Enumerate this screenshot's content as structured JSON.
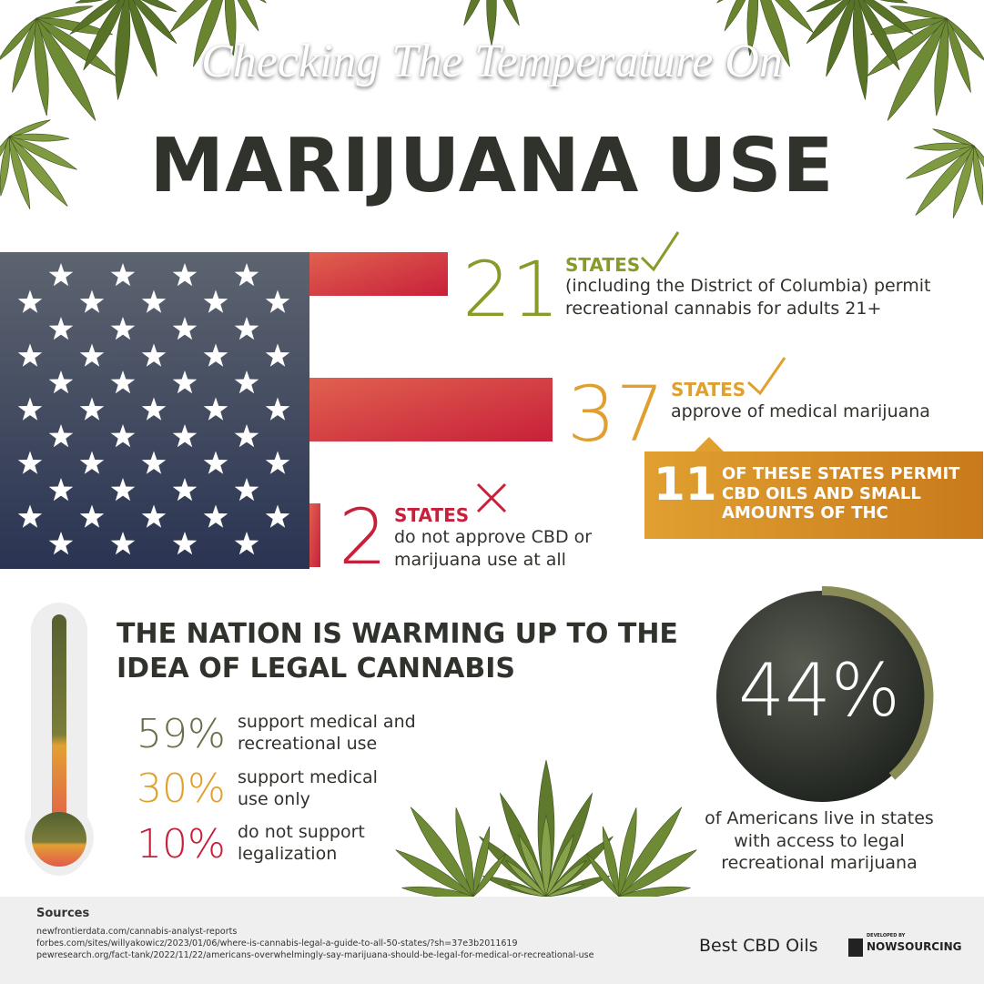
{
  "header": {
    "kicker": "Checking The Temperature On",
    "title": "MARIJUANA USE"
  },
  "states": [
    {
      "number": "21",
      "label": "STATES",
      "text": "(including the District of Columbia) permit recreational cannabis for adults 21+"
    },
    {
      "number": "37",
      "label": "STATES",
      "text": "approve of medical marijuana"
    },
    {
      "number": "2",
      "label": "STATES",
      "text": "do not approve CBD or marijuana use at all"
    }
  ],
  "callout": {
    "number": "11",
    "text": "OF THESE STATES PERMIT CBD OILS AND SMALL AMOUNTS OF THC"
  },
  "opinion": {
    "title": "THE NATION IS WARMING UP TO THE IDEA OF LEGAL CANNABIS",
    "items": [
      {
        "percent": "59%",
        "text": "support medical and recreational use"
      },
      {
        "percent": "30%",
        "text": "support medical use only"
      },
      {
        "percent": "10%",
        "text": "do not support legalization"
      }
    ]
  },
  "access": {
    "percent": "44%",
    "text": "of Americans live in states with access to legal recreational marijuana"
  },
  "sources": {
    "heading": "Sources",
    "links": [
      "newfrontierdata.com/cannabis-analyst-reports",
      "forbes.com/sites/willyakowicz/2023/01/06/where-is-cannabis-legal-a-guide-to-all-50-states/?sh=37e3b2011619",
      "pewresearch.org/fact-tank/2022/11/22/americans-overwhelmingly-say-marijuana-should-be-legal-for-medical-or-recreational-use"
    ]
  },
  "footer": {
    "brand": "Best CBD Oils",
    "developer_note": "DEVELOPED BY",
    "developer": "NOWSOURCING"
  }
}
